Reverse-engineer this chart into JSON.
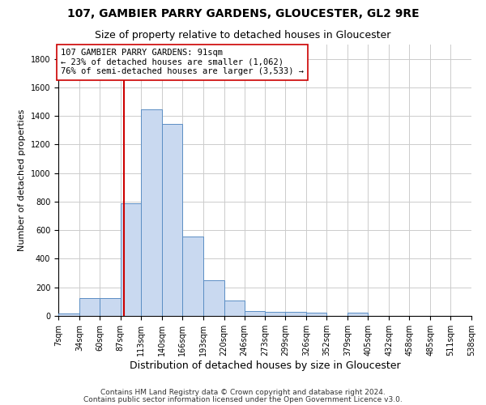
{
  "title1": "107, GAMBIER PARRY GARDENS, GLOUCESTER, GL2 9RE",
  "title2": "Size of property relative to detached houses in Gloucester",
  "xlabel": "Distribution of detached houses by size in Gloucester",
  "ylabel": "Number of detached properties",
  "bin_edges": [
    7,
    34,
    60,
    87,
    113,
    140,
    166,
    193,
    220,
    246,
    273,
    299,
    326,
    352,
    379,
    405,
    432,
    458,
    485,
    511,
    538
  ],
  "bar_heights": [
    15,
    125,
    125,
    790,
    1445,
    1345,
    555,
    250,
    110,
    35,
    30,
    30,
    20,
    0,
    20,
    0,
    0,
    0,
    0,
    0
  ],
  "bar_color": "#c9d9f0",
  "bar_edge_color": "#5b8ec4",
  "property_size": 91,
  "vline_color": "#cc0000",
  "annotation_text": "107 GAMBIER PARRY GARDENS: 91sqm\n← 23% of detached houses are smaller (1,062)\n76% of semi-detached houses are larger (3,533) →",
  "annotation_box_color": "#ffffff",
  "annotation_box_edge": "#cc0000",
  "ylim": [
    0,
    1900
  ],
  "yticks": [
    0,
    200,
    400,
    600,
    800,
    1000,
    1200,
    1400,
    1600,
    1800
  ],
  "footnote1": "Contains HM Land Registry data © Crown copyright and database right 2024.",
  "footnote2": "Contains public sector information licensed under the Open Government Licence v3.0.",
  "grid_color": "#cccccc",
  "title1_fontsize": 10,
  "title2_fontsize": 9,
  "xlabel_fontsize": 9,
  "ylabel_fontsize": 8,
  "tick_fontsize": 7,
  "annotation_fontsize": 7.5,
  "footnote_fontsize": 6.5
}
